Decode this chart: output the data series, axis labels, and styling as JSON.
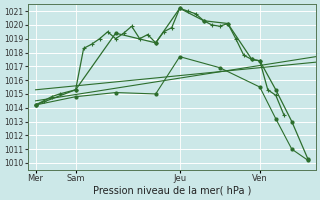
{
  "bg_color": "#cce8e8",
  "grid_color": "#ffffff",
  "line_color": "#2d6e2d",
  "title": "Pression niveau de la mer( hPa )",
  "ylim": [
    1009.5,
    1021.5
  ],
  "yticks": [
    1010,
    1011,
    1012,
    1013,
    1014,
    1015,
    1016,
    1017,
    1018,
    1019,
    1020,
    1021
  ],
  "xlim": [
    0,
    72
  ],
  "xtick_positions": [
    2,
    12,
    38,
    58
  ],
  "xtick_labels": [
    "Mer",
    "Sam",
    "Jeu",
    "Ven"
  ],
  "vline_positions": [
    2,
    12,
    38,
    58
  ],
  "series_jagged": {
    "x": [
      2,
      4,
      6,
      8,
      12,
      14,
      16,
      18,
      20,
      22,
      24,
      26,
      28,
      30,
      32,
      34,
      36,
      38,
      40,
      42,
      44,
      46,
      48,
      50,
      52,
      54,
      56,
      58,
      60,
      62,
      64
    ],
    "y": [
      1014.2,
      1014.5,
      1014.8,
      1015.0,
      1015.3,
      1018.3,
      1018.6,
      1019.0,
      1019.5,
      1019.0,
      1019.4,
      1019.9,
      1019.0,
      1019.3,
      1018.7,
      1019.5,
      1019.8,
      1021.2,
      1021.0,
      1020.8,
      1020.3,
      1020.0,
      1019.9,
      1020.1,
      1019.0,
      1017.8,
      1017.5,
      1017.4,
      1015.3,
      1014.9,
      1013.5
    ]
  },
  "series_smooth": {
    "x": [
      2,
      12,
      22,
      32,
      38,
      44,
      50,
      56,
      58,
      62,
      66,
      70
    ],
    "y": [
      1014.2,
      1015.3,
      1019.4,
      1018.7,
      1021.2,
      1020.3,
      1020.1,
      1017.5,
      1017.4,
      1015.3,
      1013.0,
      1010.3
    ]
  },
  "line_straight1": {
    "x": [
      2,
      72
    ],
    "y": [
      1014.5,
      1017.7
    ]
  },
  "line_straight2": {
    "x": [
      2,
      72
    ],
    "y": [
      1015.3,
      1017.3
    ]
  },
  "line_falling": {
    "x": [
      2,
      12,
      22,
      32,
      38,
      48,
      58,
      62,
      66,
      70
    ],
    "y": [
      1014.2,
      1014.8,
      1015.1,
      1015.0,
      1017.7,
      1016.9,
      1015.5,
      1013.2,
      1011.0,
      1010.2
    ]
  }
}
